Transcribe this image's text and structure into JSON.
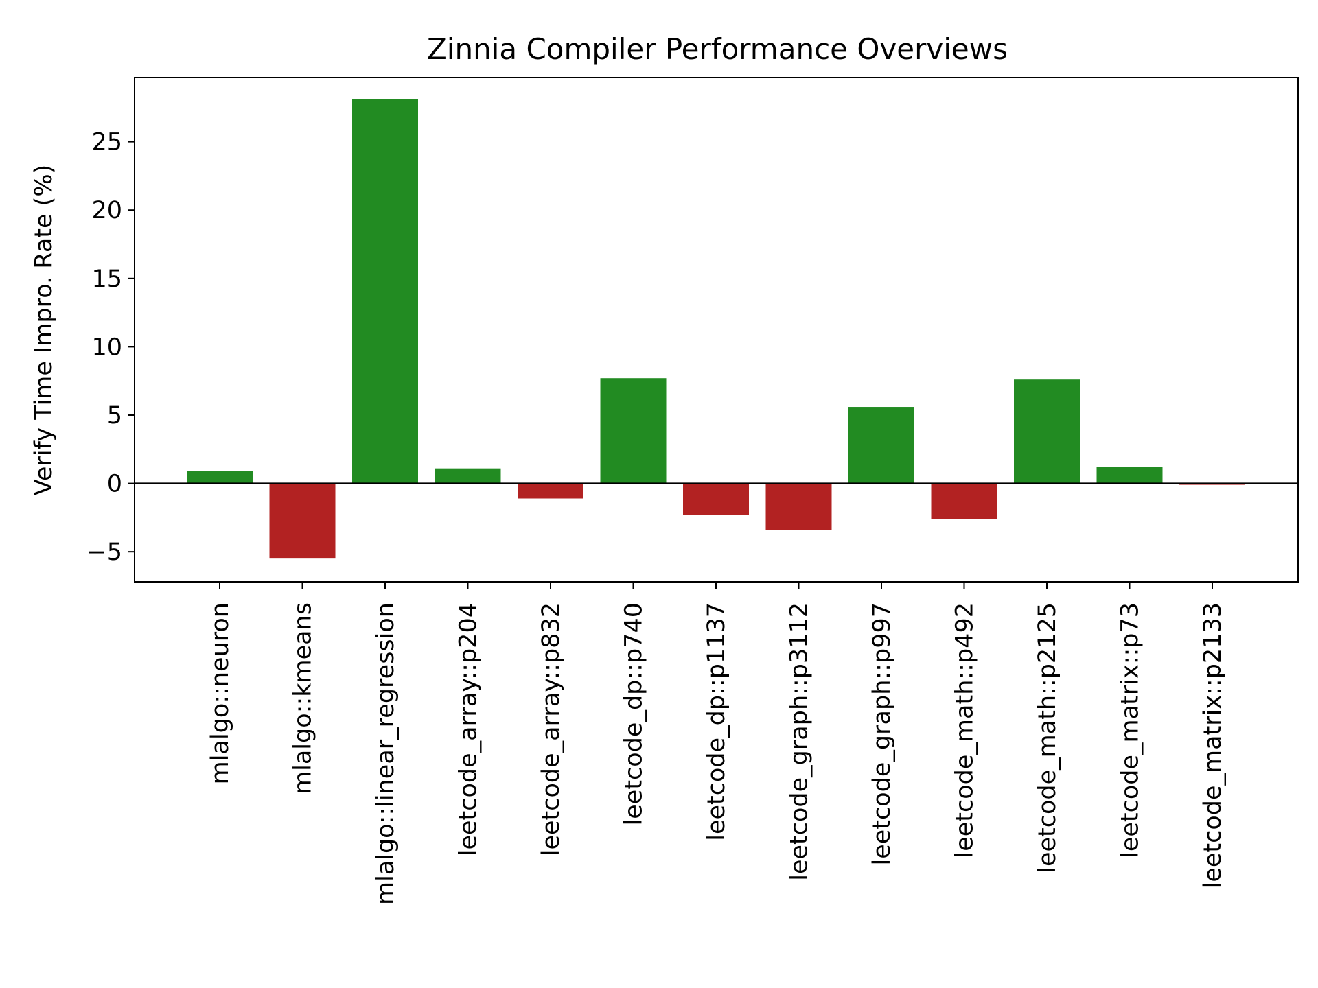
{
  "chart_data": {
    "type": "bar",
    "title": "Zinnia Compiler Performance Overviews",
    "xlabel": "",
    "ylabel": "Verify Time Impro. Rate (%)",
    "categories": [
      "mlalgo::neuron",
      "mlalgo::kmeans",
      "mlalgo::linear_regression",
      "leetcode_array::p204",
      "leetcode_array::p832",
      "leetcode_dp::p740",
      "leetcode_dp::p1137",
      "leetcode_graph::p3112",
      "leetcode_graph::p997",
      "leetcode_math::p492",
      "leetcode_math::p2125",
      "leetcode_matrix::p73",
      "leetcode_matrix::p2133"
    ],
    "values": [
      0.9,
      -5.5,
      28.1,
      1.1,
      -1.1,
      7.7,
      -2.3,
      -3.4,
      5.6,
      -2.6,
      7.6,
      1.2,
      -0.1
    ],
    "ylim": [
      -7.2,
      29.7
    ],
    "yticks": [
      -5,
      0,
      5,
      10,
      15,
      20,
      25
    ],
    "grid": false,
    "zero_line": true,
    "colors": {
      "positive": "#228b22",
      "negative": "#b22222"
    }
  }
}
